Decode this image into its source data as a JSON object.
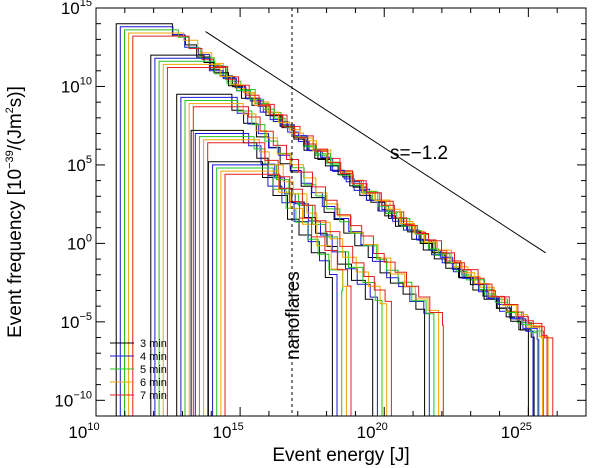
{
  "chart_data": {
    "type": "line",
    "xlabel": "Event energy [J]",
    "ylabel_main": "Event frequency [10",
    "ylabel_exp": "−39",
    "ylabel_tail": "/(Jm",
    "ylabel_exp2": "2",
    "ylabel_end": "s)]",
    "x_log_range": [
      10,
      27
    ],
    "y_log_range": [
      -11,
      15
    ],
    "x_ticks": [
      {
        "base": "10",
        "exp": "10",
        "value": 10
      },
      {
        "base": "10",
        "exp": "15",
        "value": 15
      },
      {
        "base": "10",
        "exp": "20",
        "value": 20
      },
      {
        "base": "10",
        "exp": "25",
        "value": 25
      }
    ],
    "y_ticks": [
      {
        "base": "10",
        "exp": "15",
        "value": 15
      },
      {
        "base": "10",
        "exp": "10",
        "value": 10
      },
      {
        "base": "10",
        "exp": "5",
        "value": 5
      },
      {
        "base": "10",
        "exp": "0",
        "value": 0
      },
      {
        "base": "10",
        "exp": "−5",
        "value": -5
      },
      {
        "base": "10",
        "exp": "−10",
        "value": -10
      }
    ],
    "reference_line": {
      "label": "s=−1.2",
      "x_start": 13.8,
      "y_start": 13.5,
      "x_end": 25.6,
      "y_end": -0.6,
      "slope": -1.2
    },
    "nanoflare_line": {
      "label": "nanoflares",
      "x": 16.8
    },
    "series": [
      {
        "name": "3 min",
        "color": "#000000",
        "offset": 0.0
      },
      {
        "name": "4 min",
        "color": "#1a1ad6",
        "offset": 0.18
      },
      {
        "name": "5 min",
        "color": "#22c322",
        "offset": 0.36
      },
      {
        "name": "6 min",
        "color": "#f2a500",
        "offset": 0.54
      },
      {
        "name": "7 min",
        "color": "#e02020",
        "offset": 0.72
      }
    ],
    "curve_groups": [
      {
        "x_start": 10.7,
        "y_start": 14.0,
        "x_drop": 25.6,
        "y_end": -6.2
      },
      {
        "x_start": 11.9,
        "y_start": 12.0,
        "x_drop": 25.4,
        "y_end": -5.8
      },
      {
        "x_start": 12.8,
        "y_start": 9.5,
        "x_drop": 21.8,
        "y_end": -4.9
      },
      {
        "x_start": 13.3,
        "y_start": 7.2,
        "x_drop": 20.0,
        "y_end": -4.0
      },
      {
        "x_start": 13.9,
        "y_start": 5.2,
        "x_drop": 18.6,
        "y_end": -2.7
      }
    ]
  }
}
